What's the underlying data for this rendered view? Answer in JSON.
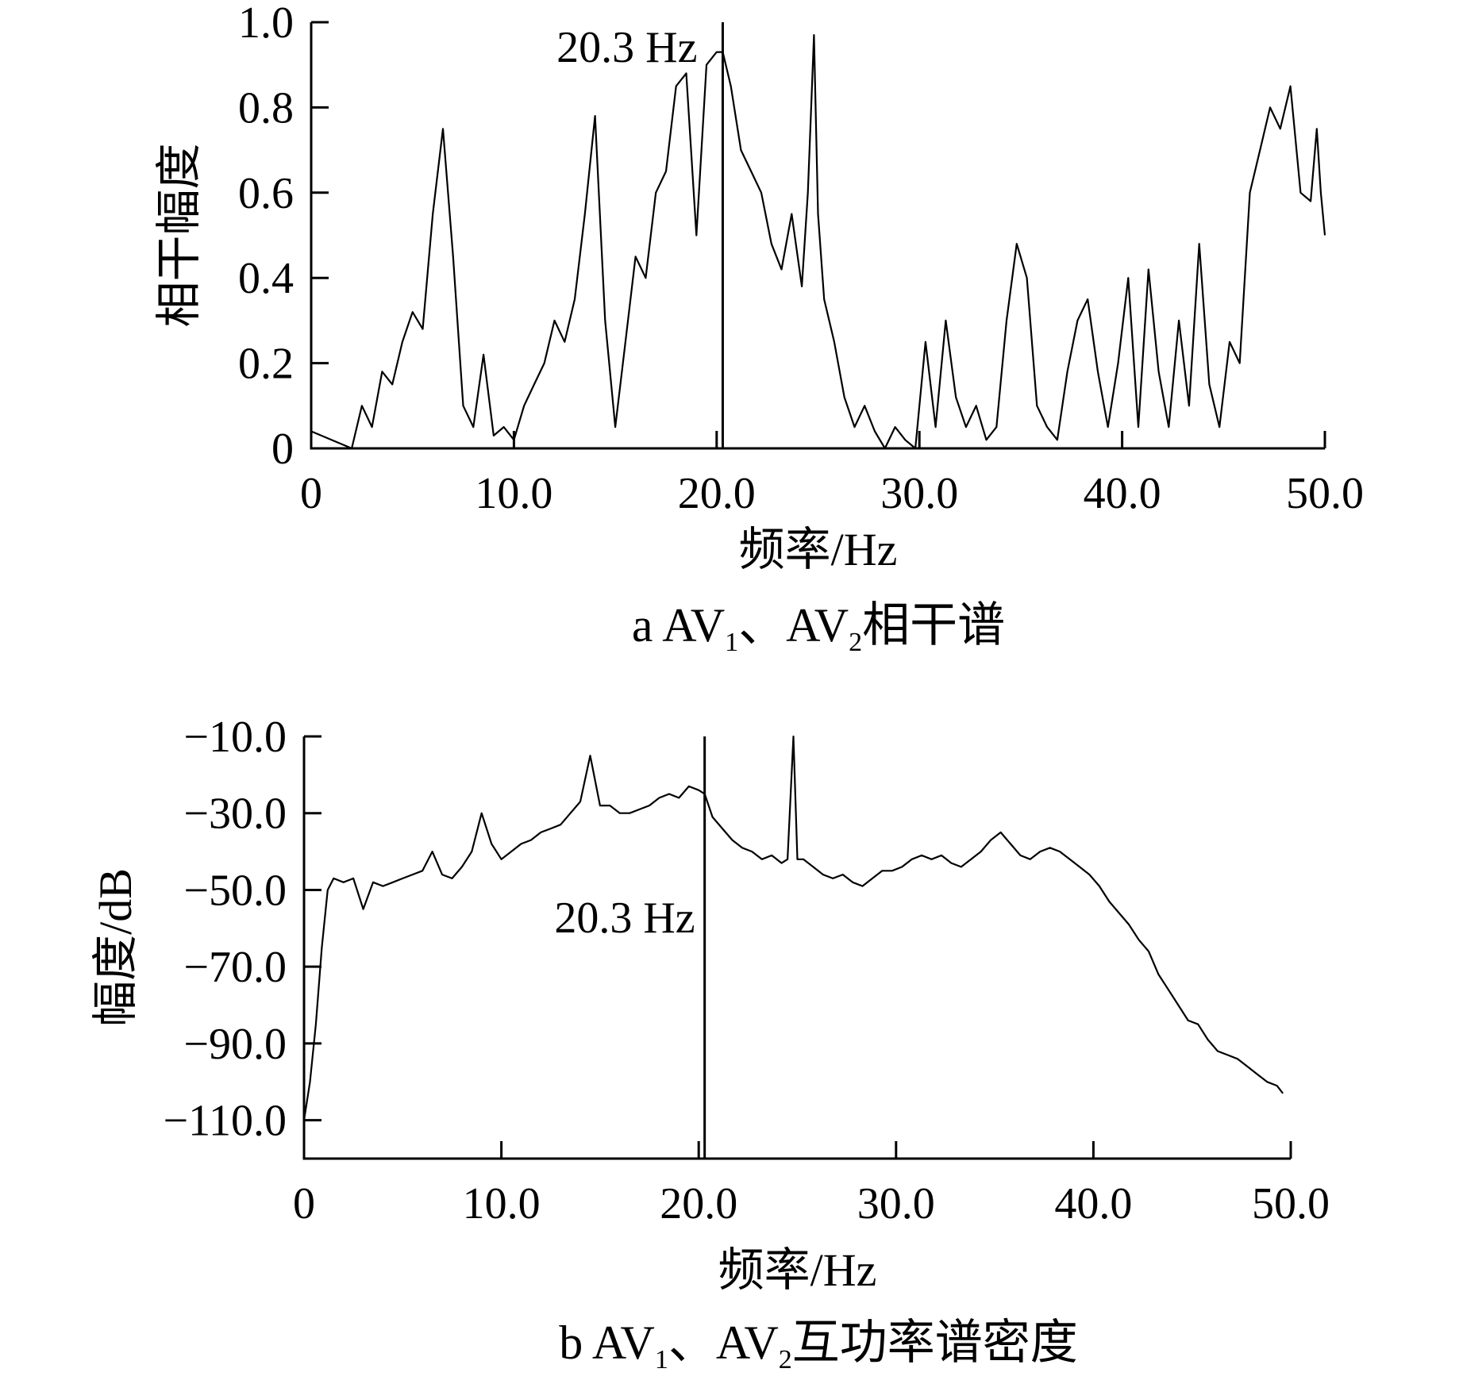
{
  "chart_data": [
    {
      "type": "line",
      "panel": "a",
      "caption": {
        "prefix": "a  AV",
        "sub1": "1",
        "mid": "、AV",
        "sub2": "2",
        "suffix": "相干谱"
      },
      "xlabel": "频率/Hz",
      "ylabel": "相干幅度",
      "xlim": [
        0,
        50
      ],
      "ylim": [
        0,
        1.0
      ],
      "x_ticks": [
        0,
        10,
        20,
        30,
        40,
        50
      ],
      "x_tick_labels": [
        "0",
        "10.0",
        "20.0",
        "30.0",
        "40.0",
        "50.0"
      ],
      "y_ticks": [
        0,
        0.2,
        0.4,
        0.6,
        0.8,
        1.0
      ],
      "y_tick_labels": [
        "0",
        "0.2",
        "0.4",
        "0.6",
        "0.8",
        "1.0"
      ],
      "marker": {
        "x": 20.3,
        "y": 0.93,
        "label": "20.3 Hz"
      },
      "grid": false,
      "series": [
        {
          "x": [
            0,
            0.5,
            1,
            1.5,
            2,
            2.5,
            3,
            3.5,
            4,
            4.5,
            5,
            5.5,
            6,
            6.5,
            7,
            7.5,
            8,
            8.5,
            9,
            9.5,
            10,
            10.5,
            11,
            11.5,
            12,
            12.5,
            13,
            13.5,
            14,
            14.5,
            15,
            15.5,
            16,
            16.5,
            17,
            17.5,
            18,
            18.5,
            19,
            19.5,
            20,
            20.3,
            20.7,
            21.2,
            21.7,
            22.2,
            22.7,
            23.2,
            23.7,
            24.2,
            24.5,
            24.8,
            25,
            25.3,
            25.8,
            26.3,
            26.8,
            27.3,
            27.8,
            28.3,
            28.8,
            29.3,
            29.8,
            30.3,
            30.8,
            31.3,
            31.8,
            32.3,
            32.8,
            33.3,
            33.8,
            34.3,
            34.8,
            35.3,
            35.8,
            36.3,
            36.8,
            37.3,
            37.8,
            38.3,
            38.8,
            39.3,
            39.8,
            40.3,
            40.8,
            41.3,
            41.8,
            42.3,
            42.8,
            43.3,
            43.8,
            44.3,
            44.8,
            45.3,
            45.8,
            46.3,
            46.8,
            47.3,
            47.8,
            48.3,
            48.8,
            49.3,
            49.6,
            49.8,
            50
          ],
          "y": [
            0.04,
            0.03,
            0.02,
            0.01,
            0.0,
            0.1,
            0.05,
            0.18,
            0.15,
            0.25,
            0.32,
            0.28,
            0.55,
            0.75,
            0.45,
            0.1,
            0.05,
            0.22,
            0.03,
            0.05,
            0.02,
            0.1,
            0.15,
            0.2,
            0.3,
            0.25,
            0.35,
            0.55,
            0.78,
            0.3,
            0.05,
            0.25,
            0.45,
            0.4,
            0.6,
            0.65,
            0.85,
            0.88,
            0.5,
            0.9,
            0.93,
            0.93,
            0.85,
            0.7,
            0.65,
            0.6,
            0.48,
            0.42,
            0.55,
            0.38,
            0.6,
            0.97,
            0.55,
            0.35,
            0.25,
            0.12,
            0.05,
            0.1,
            0.04,
            0.0,
            0.05,
            0.02,
            0.0,
            0.25,
            0.05,
            0.3,
            0.12,
            0.05,
            0.1,
            0.02,
            0.05,
            0.3,
            0.48,
            0.4,
            0.1,
            0.05,
            0.02,
            0.18,
            0.3,
            0.35,
            0.18,
            0.05,
            0.2,
            0.4,
            0.05,
            0.42,
            0.18,
            0.05,
            0.3,
            0.1,
            0.48,
            0.15,
            0.05,
            0.25,
            0.2,
            0.6,
            0.7,
            0.8,
            0.75,
            0.85,
            0.6,
            0.58,
            0.75,
            0.6,
            0.5
          ]
        }
      ]
    },
    {
      "type": "line",
      "panel": "b",
      "caption": {
        "prefix": "b  AV",
        "sub1": "1",
        "mid": "、AV",
        "sub2": "2",
        "suffix": "互功率谱密度"
      },
      "xlabel": "频率/Hz",
      "ylabel": "幅度/dB",
      "xlim": [
        0,
        50
      ],
      "ylim": [
        -120,
        -10
      ],
      "x_ticks": [
        0,
        10,
        20,
        30,
        40,
        50
      ],
      "x_tick_labels": [
        "0",
        "10.0",
        "20.0",
        "30.0",
        "40.0",
        "50.0"
      ],
      "y_ticks": [
        -110,
        -90,
        -70,
        -50,
        -30,
        -10
      ],
      "y_tick_labels": [
        "−110.0",
        "−90.0",
        "−70.0",
        "−50.0",
        "−30.0",
        "−10.0"
      ],
      "marker": {
        "x": 20.3,
        "y": -25,
        "label": "20.3 Hz"
      },
      "grid": false,
      "series": [
        {
          "x": [
            0,
            0.3,
            0.6,
            0.9,
            1.2,
            1.5,
            2,
            2.5,
            3,
            3.5,
            4,
            4.5,
            5,
            5.5,
            6,
            6.5,
            7,
            7.5,
            8,
            8.5,
            9,
            9.5,
            10,
            10.5,
            11,
            11.5,
            12,
            12.5,
            13,
            13.5,
            14,
            14.5,
            15,
            15.5,
            16,
            16.5,
            17,
            17.5,
            18,
            18.5,
            19,
            19.5,
            20,
            20.3,
            20.7,
            21.2,
            21.7,
            22.2,
            22.7,
            23.2,
            23.7,
            24.2,
            24.5,
            24.8,
            25,
            25.3,
            25.8,
            26.3,
            26.8,
            27.3,
            27.8,
            28.3,
            28.8,
            29.3,
            29.8,
            30.3,
            30.8,
            31.3,
            31.8,
            32.3,
            32.8,
            33.3,
            33.8,
            34.3,
            34.8,
            35.3,
            35.8,
            36.3,
            36.8,
            37.3,
            37.8,
            38.3,
            38.8,
            39.3,
            39.8,
            40.3,
            40.8,
            41.3,
            41.8,
            42.3,
            42.8,
            43.3,
            43.8,
            44.3,
            44.8,
            45.3,
            45.8,
            46.3,
            46.8,
            47.3,
            47.8,
            48.3,
            48.8,
            49.3,
            49.6
          ],
          "y": [
            -110,
            -100,
            -85,
            -65,
            -50,
            -47,
            -48,
            -47,
            -55,
            -48,
            -49,
            -48,
            -47,
            -46,
            -45,
            -40,
            -46,
            -47,
            -44,
            -40,
            -30,
            -38,
            -42,
            -40,
            -38,
            -37,
            -35,
            -34,
            -33,
            -30,
            -27,
            -15,
            -28,
            -28,
            -30,
            -30,
            -29,
            -28,
            -26,
            -25,
            -26,
            -23,
            -24,
            -25,
            -31,
            -34,
            -37,
            -39,
            -40,
            -42,
            -41,
            -43,
            -42,
            -10,
            -42,
            -42,
            -44,
            -46,
            -47,
            -46,
            -48,
            -49,
            -47,
            -45,
            -45,
            -44,
            -42,
            -41,
            -42,
            -41,
            -43,
            -44,
            -42,
            -40,
            -37,
            -35,
            -38,
            -41,
            -42,
            -40,
            -39,
            -40,
            -42,
            -44,
            -46,
            -49,
            -53,
            -56,
            -59,
            -63,
            -66,
            -72,
            -76,
            -80,
            -84,
            -85,
            -89,
            -92,
            -93,
            -94,
            -96,
            -98,
            -100,
            -101,
            -103
          ]
        }
      ]
    }
  ]
}
